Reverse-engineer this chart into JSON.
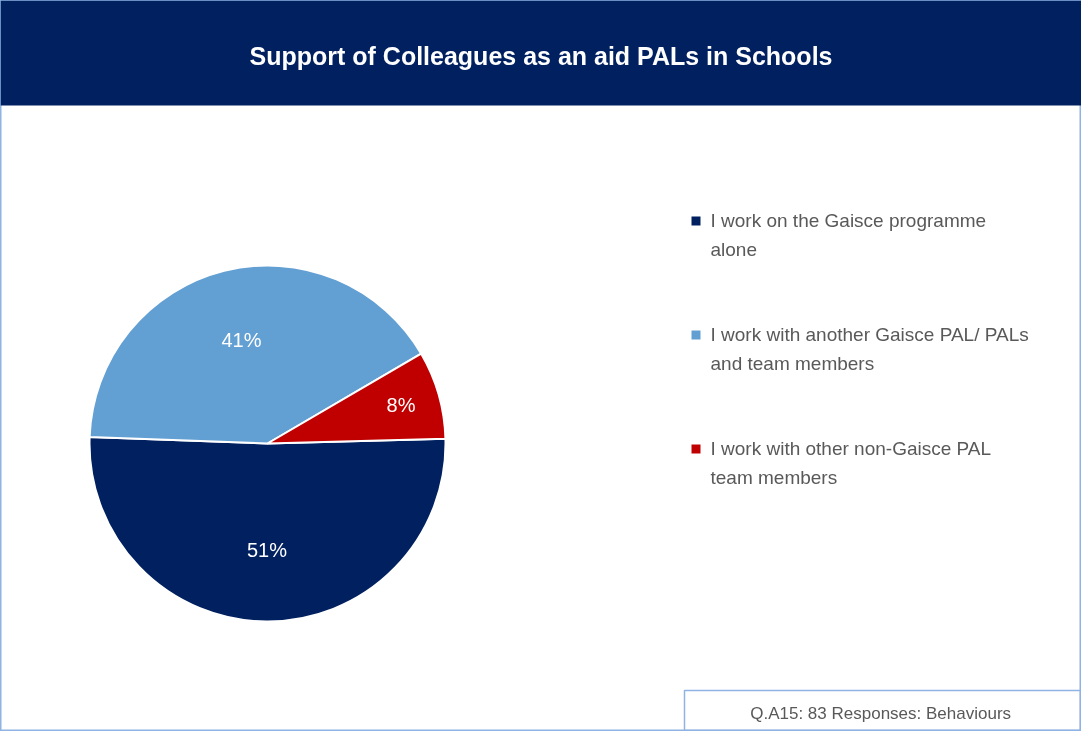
{
  "chart_data": {
    "type": "pie",
    "title": "Support of Colleagues as an aid PALs in Schools",
    "categories": [
      "I work on the Gaisce programme alone",
      "I work with another Gaisce PAL/ PALs and team members",
      "I work with other non-Gaisce PAL team members"
    ],
    "values": [
      51,
      41,
      8
    ],
    "colors": [
      "#002060",
      "#629fd3",
      "#c00000"
    ],
    "value_labels": [
      "51%",
      "41%",
      "8%"
    ],
    "legend": "right",
    "annotations": [
      "Q.A15:  83 Responses: Behaviours"
    ]
  }
}
